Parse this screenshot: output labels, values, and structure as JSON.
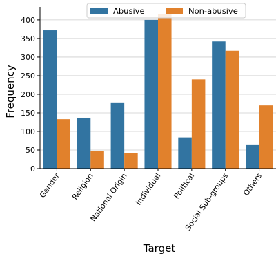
{
  "chart_data": {
    "type": "bar",
    "title": "",
    "xlabel": "Target",
    "ylabel": "Frequency",
    "categories": [
      "Gender",
      "Religion",
      "National Origin",
      "Individual",
      "Political",
      "Social Sub-groups",
      "Others"
    ],
    "series": [
      {
        "name": "Abusive",
        "color": "#3274a1",
        "values": [
          372,
          137,
          178,
          400,
          84,
          342,
          65
        ]
      },
      {
        "name": "Non-abusive",
        "color": "#e1812c",
        "values": [
          133,
          48,
          42,
          415,
          240,
          317,
          170
        ]
      }
    ],
    "ylim": [
      0,
      435
    ],
    "yticks": [
      0,
      50,
      100,
      150,
      200,
      250,
      300,
      350,
      400
    ],
    "grid": true,
    "legend_position": "top-center"
  }
}
